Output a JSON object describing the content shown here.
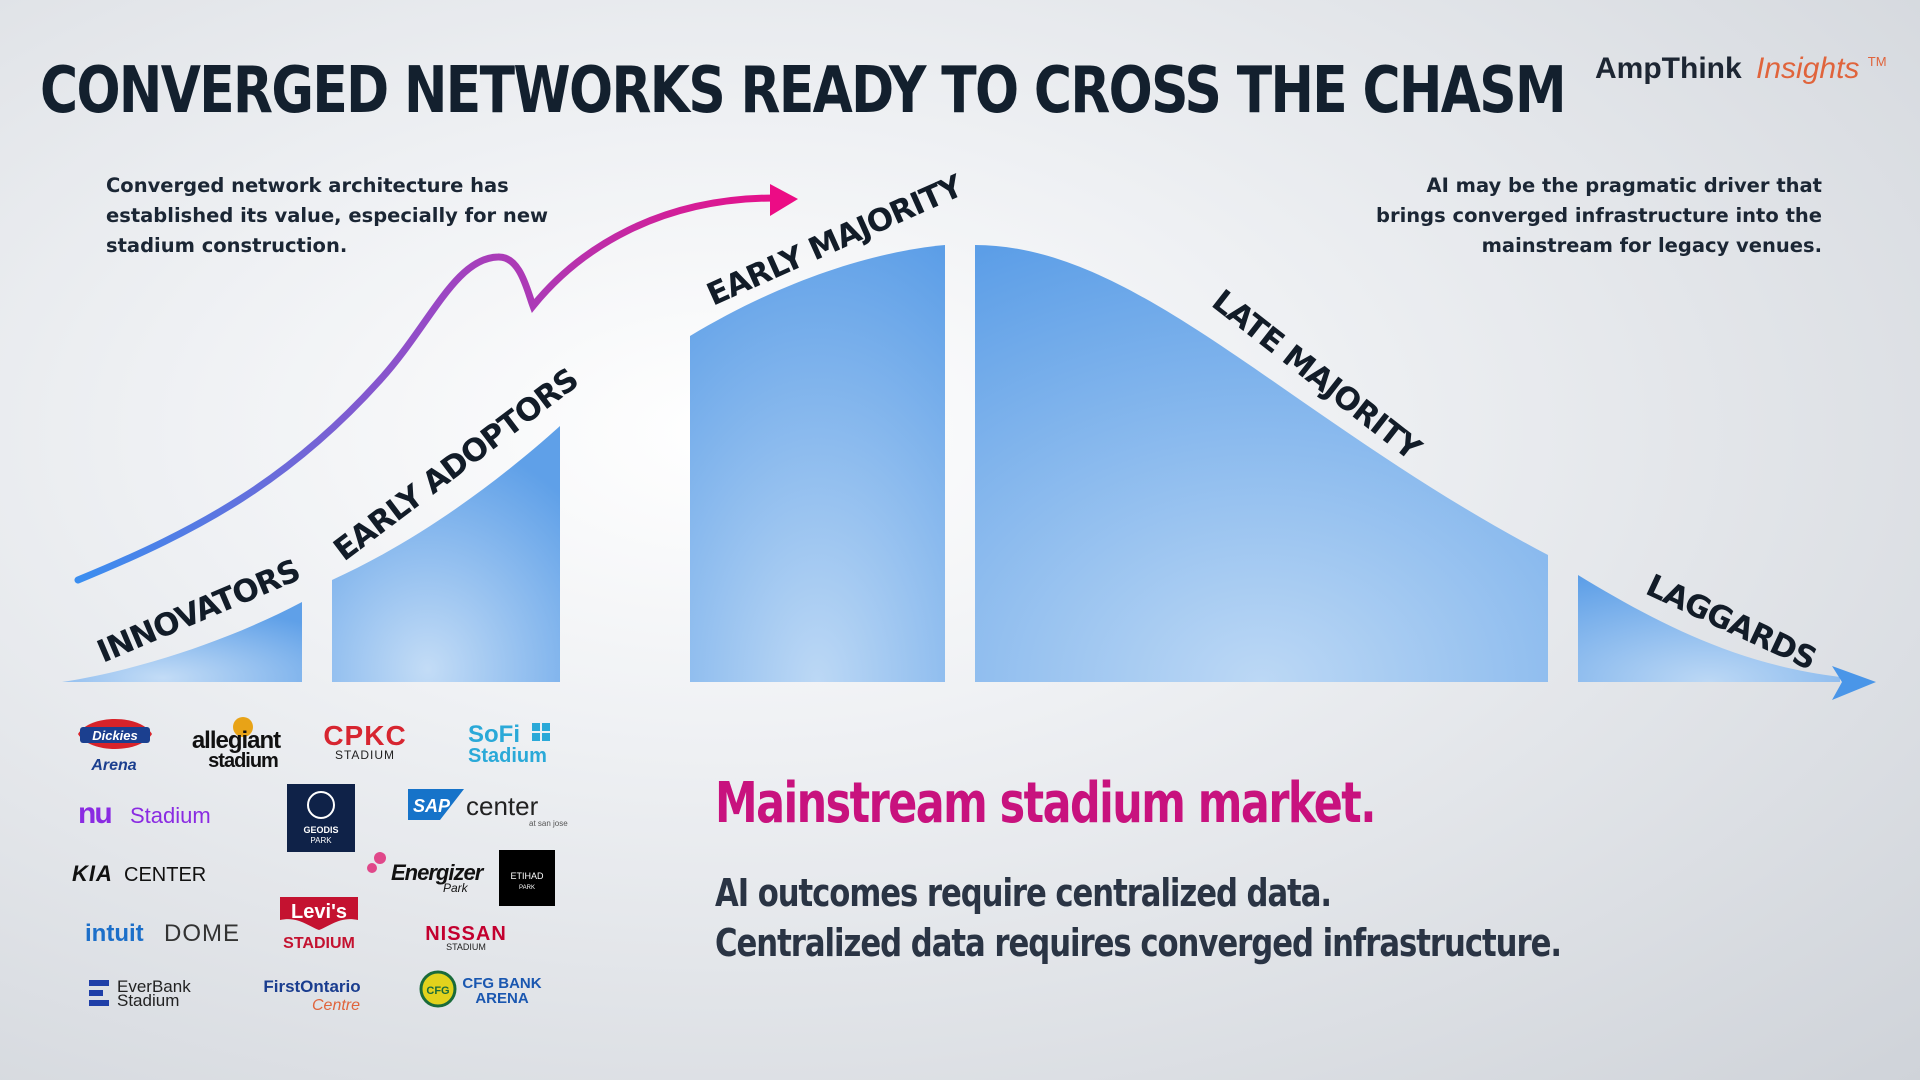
{
  "title": "CONVERGED NETWORKS READY TO CROSS THE CHASM",
  "brand": {
    "name": "AmpThink",
    "suffix": "Insights",
    "tm": "TM"
  },
  "notes": {
    "left": [
      "Converged network architecture has",
      "established its value, especially for new",
      "stadium construction."
    ],
    "right": [
      "AI may be the pragmatic driver that",
      "brings converged infrastructure  into the",
      "mainstream for legacy venues."
    ]
  },
  "segments": {
    "innovators": "INNOVATORS",
    "early_adopters": "EARLY ADOPTORS",
    "early_majority": "EARLY MAJORITY",
    "late_majority": "LATE MAJORITY",
    "laggards": "LAGGARDS"
  },
  "headline": "Mainstream stadium market.",
  "sublines": [
    "AI outcomes require centralized data.",
    "Centralized data requires converged infrastructure."
  ],
  "logos": {
    "dickies_top": "Dickies",
    "dickies_bottom": "Arena",
    "allegiant_top": "allegiant",
    "allegiant_bottom": "stadium",
    "cpkc_top": "CPKC",
    "cpkc_bottom": "STADIUM",
    "sofi_top": "SoFi",
    "sofi_bottom": "Stadium",
    "nu_mark": "nu",
    "nu_text": "Stadium",
    "geodis_top": "GEODIS",
    "geodis_bottom": "PARK",
    "sap_mark": "SAP",
    "sap_text": "center",
    "sap_small": "at san jose",
    "kia_mark": "KIA",
    "kia_text": "CENTER",
    "energizer_top": "Energizer",
    "energizer_bottom": "Park",
    "etihad_top": "ETIHAD",
    "etihad_bottom": "PARK",
    "intuit_mark": "intuit",
    "intuit_text": "DOME",
    "levis_top": "Levi's",
    "levis_bottom": "STADIUM",
    "nissan_top": "NISSAN",
    "nissan_bottom": "STADIUM",
    "everbank_top": "EverBank",
    "everbank_bottom": "Stadium",
    "firstontario_top": "FirstOntario",
    "firstontario_bottom": "Centre",
    "cfg_mark": "CFG",
    "cfg_top": "CFG BANK",
    "cfg_bottom": "ARENA"
  },
  "colors": {
    "title": "#13202e",
    "segment_fill_light": "#b9d6f5",
    "segment_fill_dark": "#5b9ee7",
    "headline": "#c8127e",
    "subline": "#2a3444",
    "brand_suffix": "#e0643c",
    "arrow_start": "#3b8ef0",
    "arrow_mid": "#8e55c9",
    "arrow_end": "#ec0c85"
  }
}
